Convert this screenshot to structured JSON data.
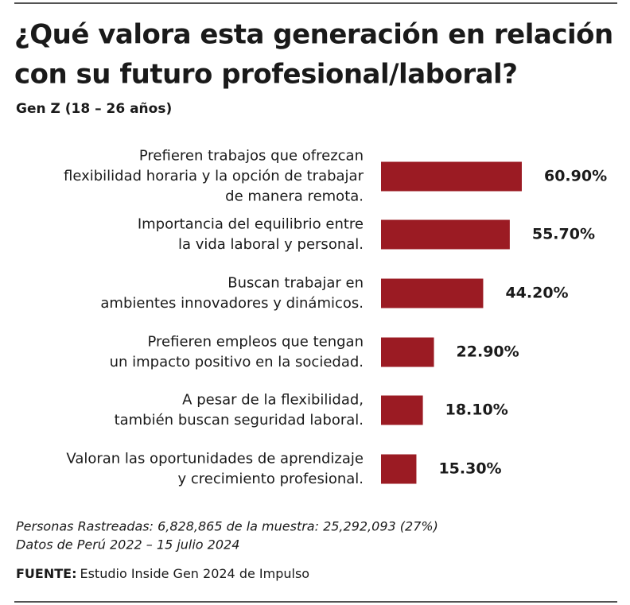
{
  "chart_data": {
    "type": "bar",
    "orientation": "horizontal",
    "title": [
      "¿Qué valora esta generación en relación",
      "con su futuro profesional/laboral?"
    ],
    "subtitle": "Gen Z (18 – 26 años)",
    "categories": [
      [
        "Prefieren trabajos que ofrezcan",
        "flexibilidad horaria y la opción de trabajar",
        "de manera remota."
      ],
      [
        "Importancia del equilibrio entre",
        "la vida laboral y personal."
      ],
      [
        "Buscan trabajar en",
        "ambientes innovadores y dinámicos."
      ],
      [
        "Prefieren empleos que tengan",
        "un impacto positivo en la sociedad."
      ],
      [
        "A pesar de la flexibilidad,",
        "también buscan seguridad laboral."
      ],
      [
        "Valoran las oportunidades de aprendizaje",
        "y crecimiento profesional."
      ]
    ],
    "values": [
      60.9,
      55.7,
      44.2,
      22.9,
      18.1,
      15.3
    ],
    "value_labels": [
      "60.90%",
      "55.70%",
      "44.20%",
      "22.90%",
      "18.10%",
      "15.30%"
    ],
    "color": "#9b1b23",
    "notes": [
      "Personas Rastreadas: 6,828,865 de la muestra: 25,292,093 (27%)",
      "Datos de Perú 2022 – 15 julio 2024"
    ],
    "source_label": "FUENTE:",
    "source": "Estudio Inside Gen 2024 de Impulso"
  }
}
